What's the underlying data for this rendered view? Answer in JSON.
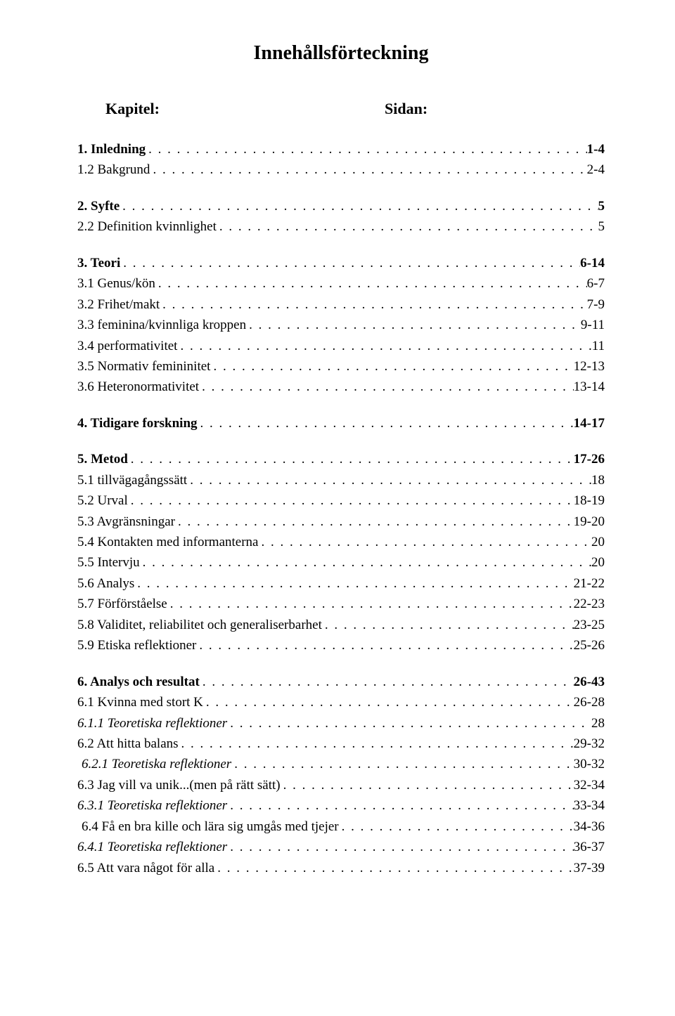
{
  "title": "Innehållsförteckning",
  "header": {
    "left": "Kapitel:",
    "right": "Sidan:"
  },
  "sections": [
    {
      "entries": [
        {
          "label": "1. Inledning",
          "page": "1-4",
          "bold": true,
          "indent": 0
        },
        {
          "label": "1.2 Bakgrund",
          "page": "2-4",
          "indent": 0
        }
      ]
    },
    {
      "entries": [
        {
          "label": "2. Syfte",
          "page": "5",
          "bold": true,
          "indent": 0
        },
        {
          "label": "2.2 Definition kvinnlighet",
          "page": "5",
          "indent": 0
        }
      ]
    },
    {
      "entries": [
        {
          "label": "3. Teori",
          "page": "6-14",
          "bold": true,
          "indent": 0
        },
        {
          "label": "3.1 Genus/kön",
          "page": "6-7",
          "indent": 0
        },
        {
          "label": "3.2 Frihet/makt",
          "page": "7-9",
          "indent": 0
        },
        {
          "label": "3.3 feminina/kvinnliga kroppen",
          "page": "9-11",
          "indent": 0
        },
        {
          "label": "3.4 performativitet",
          "page": "11",
          "indent": 0
        },
        {
          "label": "3.5 Normativ femininitet",
          "page": "12-13",
          "indent": 0
        },
        {
          "label": "3.6 Heteronormativitet",
          "page": "13-14",
          "indent": 0
        }
      ]
    },
    {
      "entries": [
        {
          "label": "4. Tidigare forskning",
          "page": "14-17",
          "bold": true,
          "indent": 0
        }
      ]
    },
    {
      "entries": [
        {
          "label": "5. Metod",
          "page": "17-26",
          "bold": true,
          "indent": 0
        },
        {
          "label": "5.1 tillvägagångssätt",
          "page": "18",
          "indent": 0
        },
        {
          "label": "5.2 Urval",
          "page": "18-19",
          "indent": 0
        },
        {
          "label": "5.3 Avgränsningar",
          "page": "19-20",
          "indent": 0
        },
        {
          "label": "5.4 Kontakten med informanterna",
          "page": "20",
          "indent": 0
        },
        {
          "label": "5.5 Intervju",
          "page": "20",
          "indent": 0
        },
        {
          "label": "5.6 Analys",
          "page": "21-22",
          "indent": 0
        },
        {
          "label": "5.7 Förförståelse",
          "page": "22-23",
          "indent": 0
        },
        {
          "label": "5.8 Validitet, reliabilitet och generaliserbarhet",
          "page": "23-25",
          "indent": 0
        },
        {
          "label": "5.9 Etiska reflektioner",
          "page": "25-26",
          "indent": 0
        }
      ]
    },
    {
      "entries": [
        {
          "label": "6. Analys och resultat",
          "page": "26-43",
          "bold": true,
          "indent": 0
        },
        {
          "label": "6.1 Kvinna med stort K",
          "page": "26-28",
          "indent": 0
        },
        {
          "label": "6.1.1 Teoretiska reflektioner",
          "page": "28",
          "italic": true,
          "indent": 0
        },
        {
          "label": "6.2 Att hitta balans",
          "page": "29-32",
          "indent": 0
        },
        {
          "label": "6.2.1 Teoretiska reflektioner",
          "page": "30-32",
          "italic": true,
          "indent": 1
        },
        {
          "label": "6.3 Jag vill va unik...(men på rätt sätt)",
          "page": "32-34",
          "indent": 0
        },
        {
          "label": "6.3.1 Teoretiska reflektioner",
          "page": "33-34",
          "italic": true,
          "indent": 0
        },
        {
          "label": "6.4 Få en bra kille och lära sig umgås med tjejer",
          "page": "34-36",
          "indent": 1
        },
        {
          "label": "6.4.1 Teoretiska reflektioner",
          "page": "36-37",
          "italic": true,
          "indent": 0
        },
        {
          "label": "6.5 Att vara något för alla",
          "page": "37-39",
          "indent": 0
        }
      ]
    }
  ],
  "style": {
    "background": "#ffffff",
    "text_color": "#000000",
    "title_fontsize": 28,
    "header_fontsize": 22,
    "entry_fontsize": 19,
    "font_family": "Times New Roman"
  }
}
